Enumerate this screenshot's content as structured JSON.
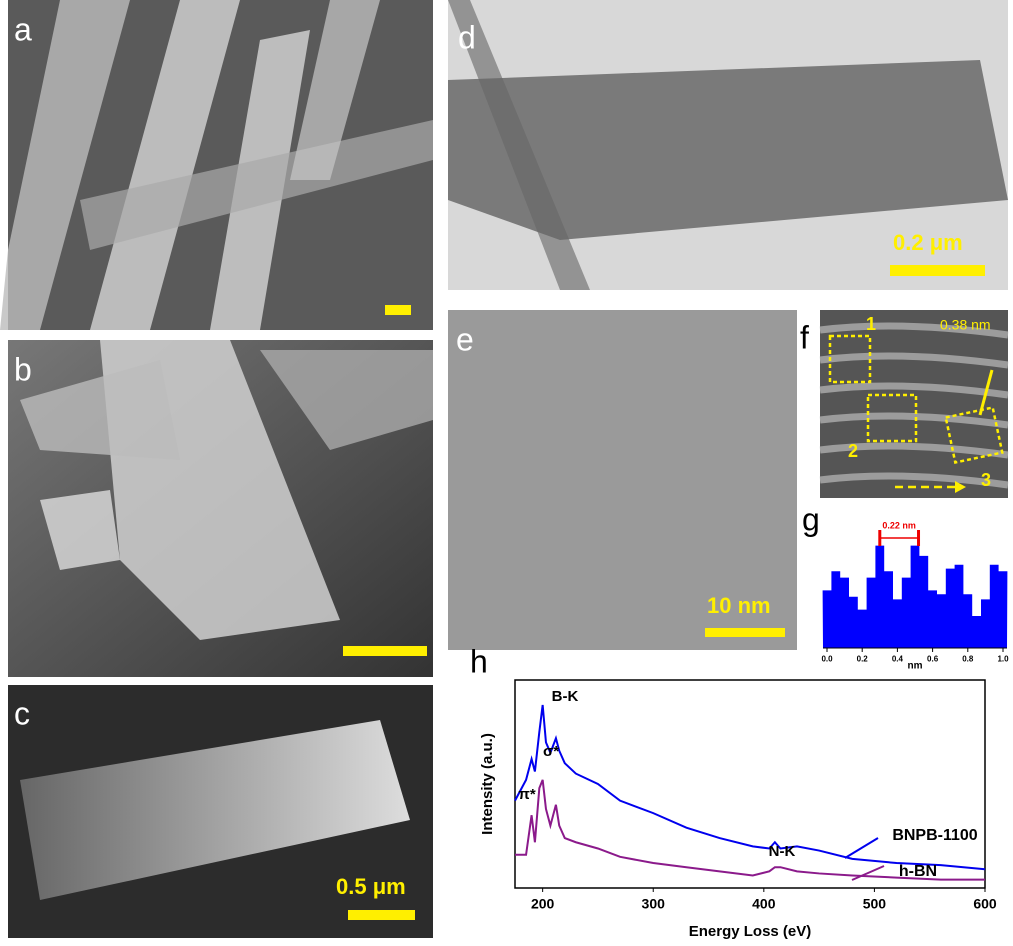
{
  "panels": {
    "a": {
      "label": "a"
    },
    "b": {
      "label": "b"
    },
    "c": {
      "label": "c",
      "scale": "0.5 μm"
    },
    "d": {
      "label": "d",
      "scale": "0.2 μm"
    },
    "e": {
      "label": "e",
      "scale": "10 nm"
    },
    "f": {
      "label": "f",
      "boxes": [
        "1",
        "2",
        "3"
      ],
      "spacing": "0.38 nm"
    }
  },
  "chart_data": [
    {
      "type": "area",
      "panel": "g",
      "color": "#0000ff",
      "x": [
        0,
        0.05,
        0.1,
        0.15,
        0.2,
        0.25,
        0.3,
        0.35,
        0.4,
        0.45,
        0.5,
        0.55,
        0.6,
        0.65,
        0.7,
        0.75,
        0.8,
        0.85,
        0.9,
        0.95,
        1.0
      ],
      "values": [
        45,
        60,
        55,
        40,
        30,
        55,
        80,
        60,
        38,
        55,
        80,
        72,
        45,
        42,
        62,
        65,
        42,
        25,
        38,
        65,
        60
      ],
      "xlim": [
        0,
        1.0
      ],
      "ylim": [
        0,
        100
      ],
      "xticks": [
        {
          "value": 0,
          "label": "0.0"
        },
        {
          "value": 0.2,
          "label": "0.2"
        },
        {
          "value": 0.4,
          "label": "0.4"
        },
        {
          "value": 0.6,
          "label": "0.6"
        },
        {
          "value": 0.8,
          "label": "0.8"
        },
        {
          "value": 1.0,
          "label": "1.0"
        }
      ],
      "x_label": "nm",
      "bracket": [
        0.3,
        0.52
      ],
      "bracket_label": "0.22 nm"
    },
    {
      "type": "line",
      "panel": "h",
      "x_label": "Energy Loss (eV)",
      "y_label": "Intensity (a.u.)",
      "xlim": [
        175,
        600
      ],
      "ylim": [
        0,
        100
      ],
      "xticks": [
        200,
        300,
        400,
        500,
        600
      ],
      "x": [
        175,
        185,
        190,
        193,
        197,
        200,
        203,
        207,
        212,
        215,
        220,
        230,
        250,
        270,
        300,
        330,
        360,
        390,
        405,
        410,
        415,
        430,
        450,
        480,
        520,
        560,
        600
      ],
      "series": [
        {
          "name": "BNPB-1100",
          "color": "#0000ee",
          "values": [
            42,
            52,
            62,
            56,
            75,
            88,
            70,
            65,
            72,
            66,
            60,
            55,
            50,
            42,
            36,
            29,
            24,
            20,
            19,
            22,
            19,
            20,
            18,
            14,
            12,
            11,
            9
          ]
        },
        {
          "name": "h-BN",
          "color": "#8b1a8b",
          "values": [
            16,
            16,
            35,
            22,
            48,
            52,
            38,
            30,
            40,
            30,
            24,
            22,
            19,
            15,
            12,
            10,
            8,
            6,
            8,
            10,
            10,
            8,
            7,
            6,
            5,
            4,
            4
          ]
        }
      ],
      "annotations": [
        "B-K",
        "σ*",
        "π*",
        "N-K"
      ]
    }
  ]
}
